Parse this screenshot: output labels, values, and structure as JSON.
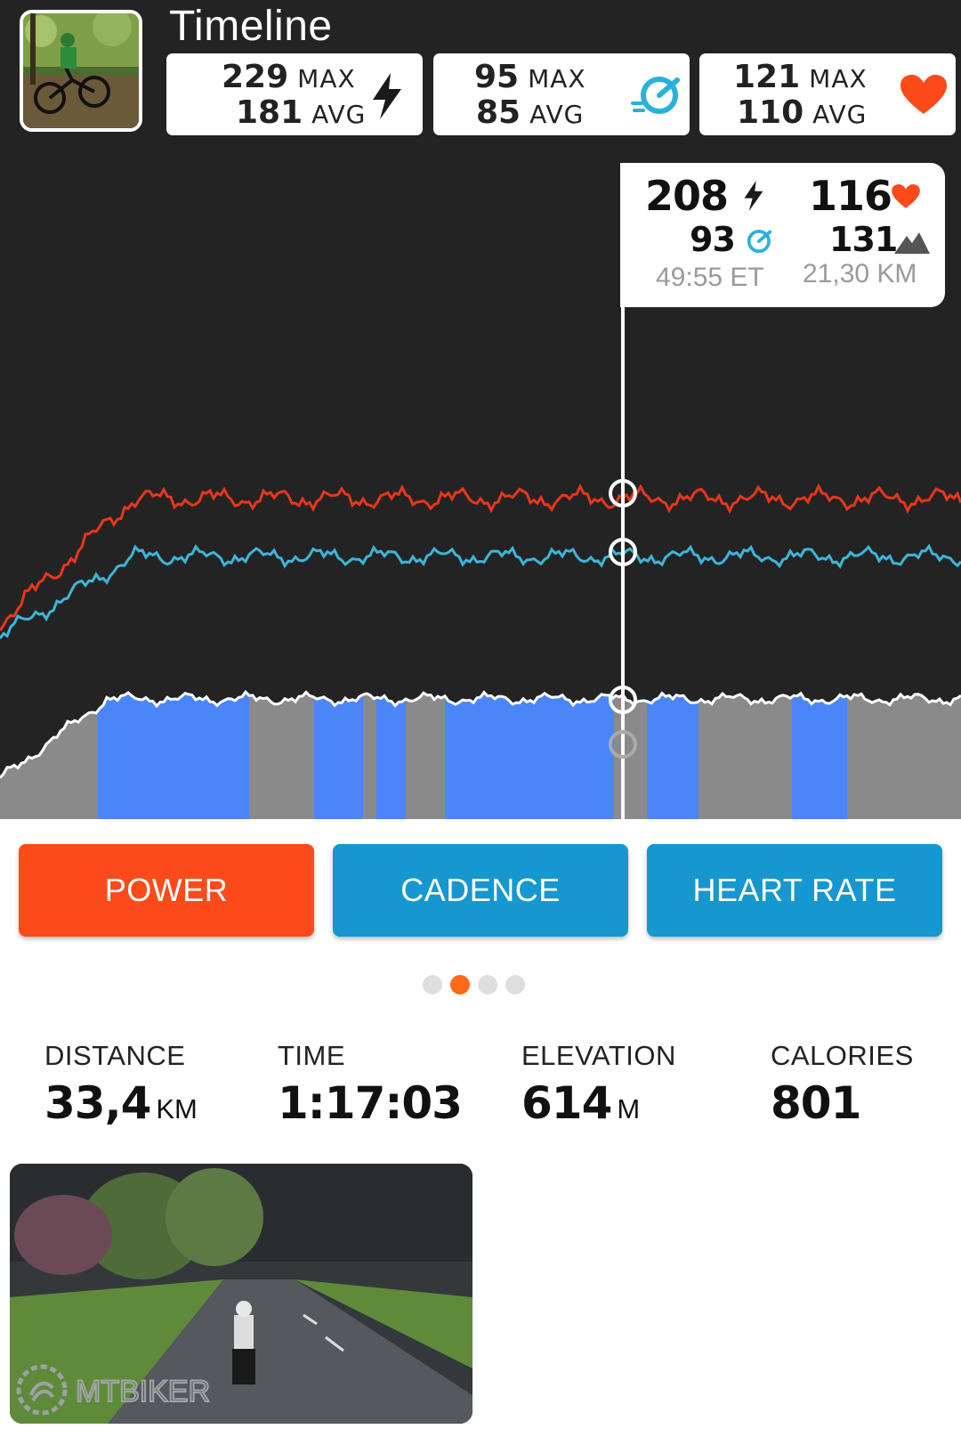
{
  "header": {
    "title": "Timeline"
  },
  "stats": {
    "power": {
      "max": "229",
      "max_label": "MAX",
      "avg": "181",
      "avg_label": "AVG",
      "icon": "bolt-icon"
    },
    "cadence": {
      "max": "95",
      "max_label": "MAX",
      "avg": "85",
      "avg_label": "AVG",
      "icon": "cadence-gauge-icon"
    },
    "heart_rate": {
      "max": "121",
      "max_label": "MAX",
      "avg": "110",
      "avg_label": "AVG",
      "icon": "heart-icon"
    }
  },
  "tooltip": {
    "power": "208",
    "heart_rate": "116",
    "cadence": "93",
    "elevation": "131",
    "time": "49:55 ET",
    "distance": "21,30 KM",
    "scrub_position_fraction": 0.648
  },
  "tabs": [
    {
      "label": "POWER",
      "active": true
    },
    {
      "label": "CADENCE",
      "active": false
    },
    {
      "label": "HEART RATE",
      "active": false
    }
  ],
  "pager": {
    "count": 4,
    "active": 1
  },
  "summary": {
    "distance": {
      "label": "DISTANCE",
      "value": "33,4",
      "unit": "KM"
    },
    "time": {
      "label": "TIME",
      "value": "1:17:03",
      "unit": ""
    },
    "elevation": {
      "label": "ELEVATION",
      "value": "614",
      "unit": "M"
    },
    "calories": {
      "label": "CALORIES",
      "value": "801",
      "unit": ""
    }
  },
  "photo": {
    "watermark": "MTBIKER"
  },
  "colors": {
    "background": "#232323",
    "heart_line": "#e8361c",
    "cadence_line": "#3eb5d9",
    "power_fill_gray": "#8a8a8a",
    "power_fill_blue": "#4a86f7",
    "power_button": "#fc4a1a",
    "secondary_button": "#1697cf",
    "pager_active": "#fc6a1a"
  }
}
